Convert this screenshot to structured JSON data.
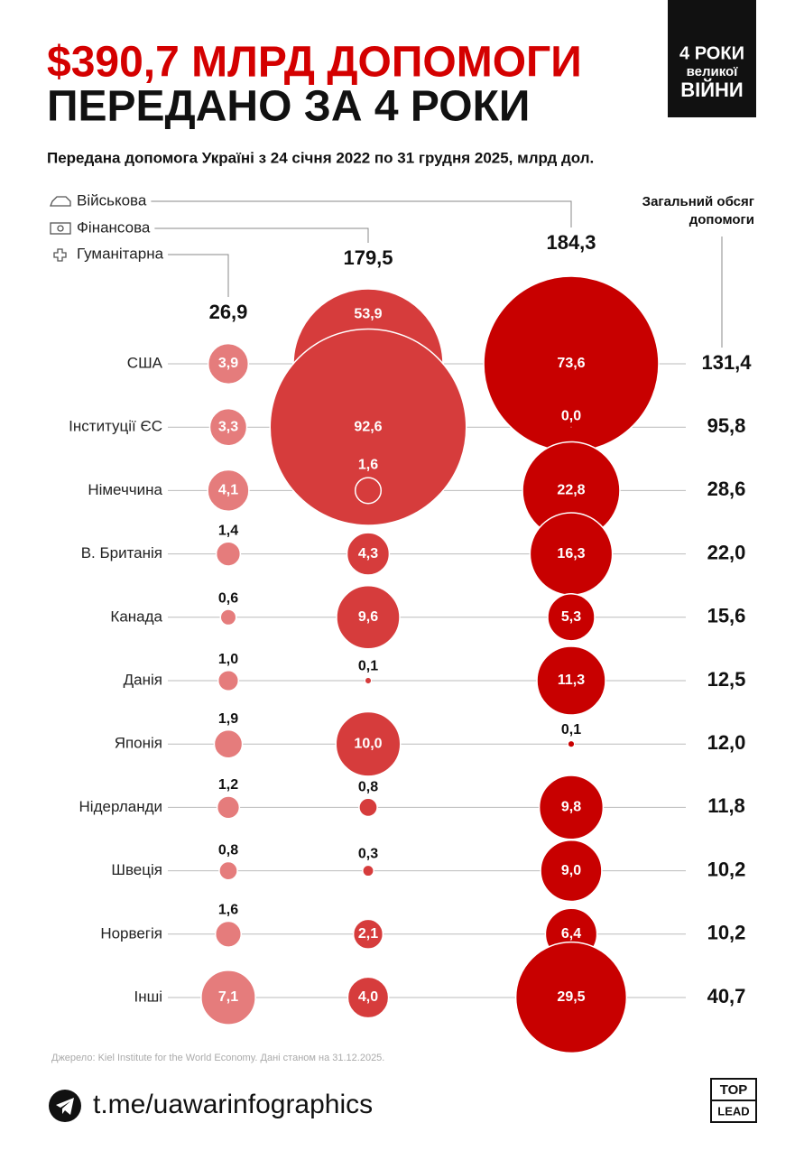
{
  "header": {
    "title_line1": "$390,7 МЛРД ДОПОМОГИ",
    "title_line2": "ПЕРЕДАНО ЗА 4 РОКИ",
    "badge": [
      "4 РОКИ",
      "великої",
      "ВІЙНИ"
    ],
    "subtitle": "Передана допомога Україні з 24 січня 2022 по 31 грудня 2025, млрд дол."
  },
  "chart_data": {
    "type": "bubble",
    "categories": [
      "США",
      "Інституції ЄС",
      "Німеччина",
      "В. Британія",
      "Канада",
      "Данія",
      "Японія",
      "Нідерланди",
      "Швеція",
      "Норвегія",
      "Інші"
    ],
    "series": [
      {
        "name": "Гуманітарна",
        "color": "#e57c7c",
        "total": 26.9,
        "total_label": "26,9",
        "values": [
          3.9,
          3.3,
          4.1,
          1.4,
          0.6,
          1.0,
          1.9,
          1.2,
          0.8,
          1.6,
          7.1
        ],
        "value_labels": [
          "3,9",
          "3,3",
          "4,1",
          "1,4",
          "0,6",
          "1,0",
          "1,9",
          "1,2",
          "0,8",
          "1,6",
          "7,1"
        ]
      },
      {
        "name": "Фінансова",
        "color": "#d63c3c",
        "total": 179.5,
        "total_label": "179,5",
        "values": [
          53.9,
          92.6,
          1.6,
          4.3,
          9.6,
          0.1,
          10.0,
          0.8,
          0.3,
          2.1,
          4.0
        ],
        "value_labels": [
          "53,9",
          "92,6",
          "1,6",
          "4,3",
          "9,6",
          "0,1",
          "10,0",
          "0,8",
          "0,3",
          "2,1",
          "4,0"
        ]
      },
      {
        "name": "Військова",
        "color": "#c80000",
        "total": 184.3,
        "total_label": "184,3",
        "values": [
          73.6,
          0.0,
          22.8,
          16.3,
          5.3,
          11.3,
          0.1,
          9.8,
          9.0,
          6.4,
          29.5
        ],
        "value_labels": [
          "73,6",
          "0,0",
          "22,8",
          "16,3",
          "5,3",
          "11,3",
          "0,1",
          "9,8",
          "9,0",
          "6,4",
          "29,5"
        ]
      }
    ],
    "totals_title": [
      "Загальний обсяг",
      "допомоги"
    ],
    "totals": [
      131.4,
      95.8,
      28.6,
      22.0,
      15.6,
      12.5,
      12.0,
      11.8,
      10.2,
      10.2,
      40.7
    ],
    "totals_labels": [
      "131,4",
      "95,8",
      "28,6",
      "22,0",
      "15,6",
      "12,5",
      "12,0",
      "11,8",
      "10,2",
      "10,2",
      "40,7"
    ]
  },
  "footer": {
    "source": "Джерело: Kiel Institute for the World Economy. Дані станом на 31.12.2025.",
    "link": "t.me/uawarinfographics",
    "logo": [
      "TOP",
      "LEAD"
    ]
  }
}
